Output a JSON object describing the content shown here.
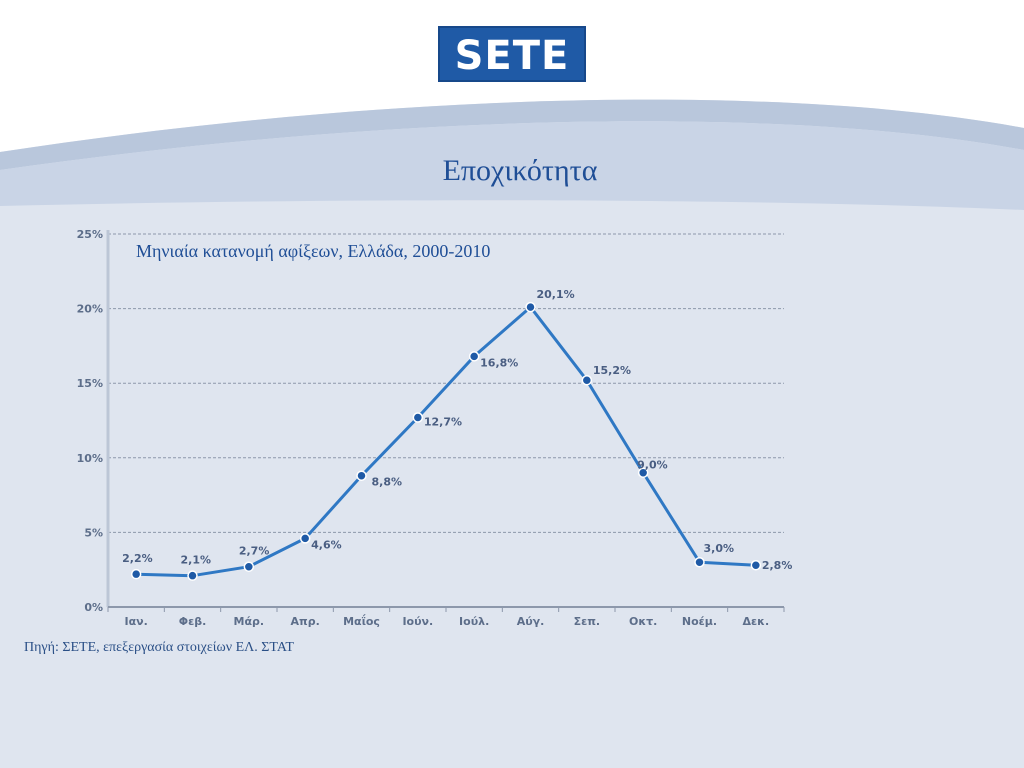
{
  "logo": {
    "text": "SETE"
  },
  "page_title": "Εποχικότητα",
  "source": "Πηγή: ΣΕΤΕ, επεξεργασία στοιχείων ΕΛ. ΣΤΑΤ",
  "colors": {
    "line": "#2f78c4",
    "marker": "#1f5aa6",
    "title": "#1f4e96"
  },
  "chart_data": {
    "type": "line",
    "title": "Μηνιαία κατανομή αφίξεων, Ελλάδα, 2000-2010",
    "xlabel": "",
    "ylabel": "",
    "categories": [
      "Ιαν.",
      "Φεβ.",
      "Μάρ.",
      "Απρ.",
      "Μαΐος",
      "Ιούν.",
      "Ιούλ.",
      "Αύγ.",
      "Σεπ.",
      "Οκτ.",
      "Νοέμ.",
      "Δεκ."
    ],
    "values": [
      2.2,
      2.1,
      2.7,
      4.6,
      8.8,
      12.7,
      16.8,
      20.1,
      15.2,
      9.0,
      3.0,
      2.8
    ],
    "data_labels": [
      "2,2%",
      "2,1%",
      "2,7%",
      "4,6%",
      "8,8%",
      "12,7%",
      "16,8%",
      "20,1%",
      "15,2%",
      "9,0%",
      "3,0%",
      "2,8%"
    ],
    "y_ticks": [
      0,
      5,
      10,
      15,
      20,
      25
    ],
    "y_tick_labels": [
      "0%",
      "5%",
      "10%",
      "15%",
      "20%",
      "25%"
    ],
    "ylim": [
      0,
      25
    ],
    "grid": true,
    "legend": "none"
  }
}
